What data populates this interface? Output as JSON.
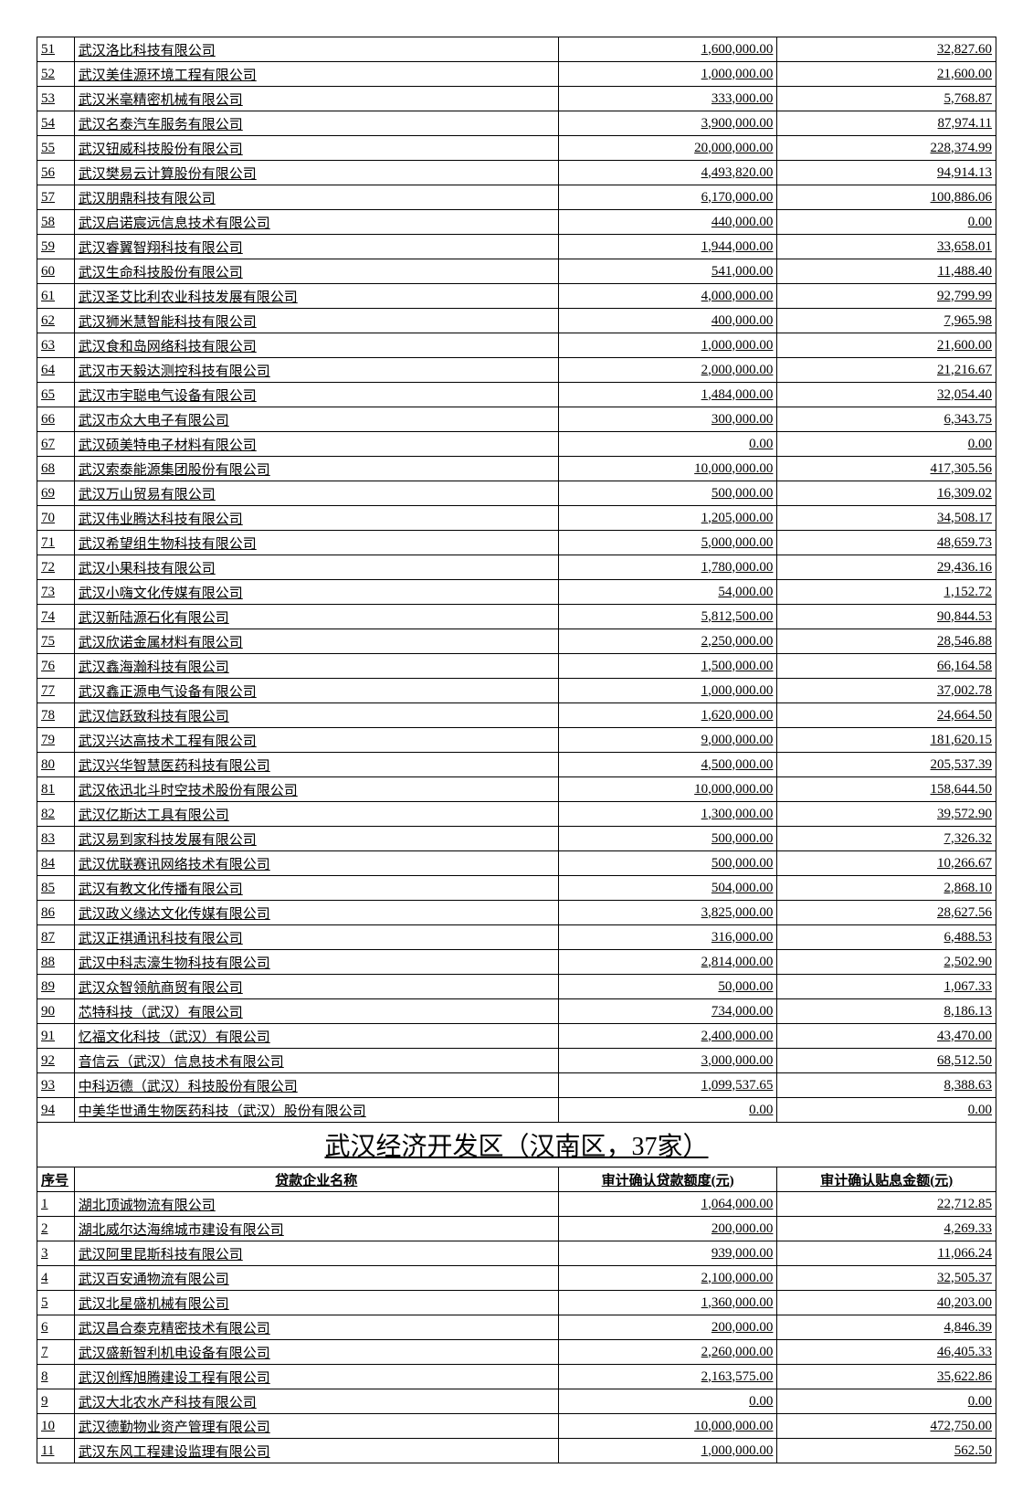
{
  "section1": {
    "rows": [
      {
        "idx": "51",
        "name": "武汉洛比科技有限公司",
        "a": "1,600,000.00",
        "b": "32,827.60"
      },
      {
        "idx": "52",
        "name": "武汉美佳源环境工程有限公司",
        "a": "1,000,000.00",
        "b": "21,600.00"
      },
      {
        "idx": "53",
        "name": "武汉米毫精密机械有限公司",
        "a": "333,000.00",
        "b": "5,768.87"
      },
      {
        "idx": "54",
        "name": "武汉名泰汽车服务有限公司",
        "a": "3,900,000.00",
        "b": "87,974.11"
      },
      {
        "idx": "55",
        "name": "武汉钮威科技股份有限公司",
        "a": "20,000,000.00",
        "b": "228,374.99"
      },
      {
        "idx": "56",
        "name": "武汉樊易云计算股份有限公司",
        "a": "4,493,820.00",
        "b": "94,914.13"
      },
      {
        "idx": "57",
        "name": "武汉朋鼎科技有限公司",
        "a": "6,170,000.00",
        "b": "100,886.06"
      },
      {
        "idx": "58",
        "name": "武汉启诺宸远信息技术有限公司",
        "a": "440,000.00",
        "b": "0.00"
      },
      {
        "idx": "59",
        "name": "武汉睿翼智翔科技有限公司",
        "a": "1,944,000.00",
        "b": "33,658.01"
      },
      {
        "idx": "60",
        "name": "武汉生命科技股份有限公司",
        "a": "541,000.00",
        "b": "11,488.40"
      },
      {
        "idx": "61",
        "name": "武汉圣艾比利农业科技发展有限公司",
        "a": "4,000,000.00",
        "b": "92,799.99"
      },
      {
        "idx": "62",
        "name": "武汉狮米慧智能科技有限公司",
        "a": "400,000.00",
        "b": "7,965.98"
      },
      {
        "idx": "63",
        "name": "武汉食和岛网络科技有限公司",
        "a": "1,000,000.00",
        "b": "21,600.00"
      },
      {
        "idx": "64",
        "name": "武汉市天毅达测控科技有限公司",
        "a": "2,000,000.00",
        "b": "21,216.67"
      },
      {
        "idx": "65",
        "name": "武汉市宇聪电气设备有限公司",
        "a": "1,484,000.00",
        "b": "32,054.40"
      },
      {
        "idx": "66",
        "name": "武汉市众大电子有限公司",
        "a": "300,000.00",
        "b": "6,343.75"
      },
      {
        "idx": "67",
        "name": "武汉硕美特电子材料有限公司",
        "a": "0.00",
        "b": "0.00"
      },
      {
        "idx": "68",
        "name": "武汉索泰能源集团股份有限公司",
        "a": "10,000,000.00",
        "b": "417,305.56"
      },
      {
        "idx": "69",
        "name": "武汉万山贸易有限公司",
        "a": "500,000.00",
        "b": "16,309.02"
      },
      {
        "idx": "70",
        "name": "武汉伟业腾达科技有限公司",
        "a": "1,205,000.00",
        "b": "34,508.17"
      },
      {
        "idx": "71",
        "name": "武汉希望组生物科技有限公司",
        "a": "5,000,000.00",
        "b": "48,659.73"
      },
      {
        "idx": "72",
        "name": "武汉小果科技有限公司",
        "a": "1,780,000.00",
        "b": "29,436.16"
      },
      {
        "idx": "73",
        "name": "武汉小嗨文化传媒有限公司",
        "a": "54,000.00",
        "b": "1,152.72"
      },
      {
        "idx": "74",
        "name": "武汉新陆源石化有限公司",
        "a": "5,812,500.00",
        "b": "90,844.53"
      },
      {
        "idx": "75",
        "name": "武汉欣诺金属材料有限公司",
        "a": "2,250,000.00",
        "b": "28,546.88"
      },
      {
        "idx": "76",
        "name": "武汉鑫海瀚科技有限公司",
        "a": "1,500,000.00",
        "b": "66,164.58"
      },
      {
        "idx": "77",
        "name": "武汉鑫正源电气设备有限公司",
        "a": "1,000,000.00",
        "b": "37,002.78"
      },
      {
        "idx": "78",
        "name": "武汉信跃致科技有限公司",
        "a": "1,620,000.00",
        "b": "24,664.50"
      },
      {
        "idx": "79",
        "name": "武汉兴达高技术工程有限公司",
        "a": "9,000,000.00",
        "b": "181,620.15"
      },
      {
        "idx": "80",
        "name": "武汉兴华智慧医药科技有限公司",
        "a": "4,500,000.00",
        "b": "205,537.39"
      },
      {
        "idx": "81",
        "name": "武汉依迅北斗时空技术股份有限公司",
        "a": "10,000,000.00",
        "b": "158,644.50"
      },
      {
        "idx": "82",
        "name": "武汉亿斯达工具有限公司",
        "a": "1,300,000.00",
        "b": "39,572.90"
      },
      {
        "idx": "83",
        "name": "武汉易到家科技发展有限公司",
        "a": "500,000.00",
        "b": "7,326.32"
      },
      {
        "idx": "84",
        "name": "武汉优联赛讯网络技术有限公司",
        "a": "500,000.00",
        "b": "10,266.67"
      },
      {
        "idx": "85",
        "name": "武汉有教文化传播有限公司",
        "a": "504,000.00",
        "b": "2,868.10"
      },
      {
        "idx": "86",
        "name": "武汉政义缘达文化传媒有限公司",
        "a": "3,825,000.00",
        "b": "28,627.56"
      },
      {
        "idx": "87",
        "name": "武汉正祺通讯科技有限公司",
        "a": "316,000.00",
        "b": "6,488.53"
      },
      {
        "idx": "88",
        "name": "武汉中科志濠生物科技有限公司",
        "a": "2,814,000.00",
        "b": "2,502.90"
      },
      {
        "idx": "89",
        "name": "武汉众智领航商贸有限公司",
        "a": "50,000.00",
        "b": "1,067.33"
      },
      {
        "idx": "90",
        "name": "芯特科技（武汉）有限公司",
        "a": "734,000.00",
        "b": "8,186.13"
      },
      {
        "idx": "91",
        "name": "忆福文化科技（武汉）有限公司",
        "a": "2,400,000.00",
        "b": "43,470.00"
      },
      {
        "idx": "92",
        "name": "音信云（武汉）信息技术有限公司",
        "a": "3,000,000.00",
        "b": "68,512.50"
      },
      {
        "idx": "93",
        "name": "中科迈德（武汉）科技股份有限公司",
        "a": "1,099,537.65",
        "b": "8,388.63"
      },
      {
        "idx": "94",
        "name": "中美华世通生物医药科技（武汉）股份有限公司",
        "a": "0.00",
        "b": "0.00"
      }
    ]
  },
  "section2": {
    "title": "武汉经济开发区（汉南区，37家）",
    "headers": {
      "idx": "序号",
      "name": "贷款企业名称",
      "a": "审计确认贷款额度(元)",
      "b": "审计确认贴息金额(元)"
    },
    "rows": [
      {
        "idx": "1",
        "name": "湖北顶诚物流有限公司",
        "a": "1,064,000.00",
        "b": "22,712.85"
      },
      {
        "idx": "2",
        "name": "湖北威尔达海绵城市建设有限公司",
        "a": "200,000.00",
        "b": "4,269.33"
      },
      {
        "idx": "3",
        "name": "武汉阿里昆斯科技有限公司",
        "a": "939,000.00",
        "b": "11,066.24"
      },
      {
        "idx": "4",
        "name": "武汉百安通物流有限公司",
        "a": "2,100,000.00",
        "b": "32,505.37"
      },
      {
        "idx": "5",
        "name": "武汉北星盛机械有限公司",
        "a": "1,360,000.00",
        "b": "40,203.00"
      },
      {
        "idx": "6",
        "name": "武汉昌合泰克精密技术有限公司",
        "a": "200,000.00",
        "b": "4,846.39"
      },
      {
        "idx": "7",
        "name": "武汉盛新智利机电设备有限公司",
        "a": "2,260,000.00",
        "b": "46,405.33"
      },
      {
        "idx": "8",
        "name": "武汉创辉旭腾建设工程有限公司",
        "a": "2,163,575.00",
        "b": "35,622.86"
      },
      {
        "idx": "9",
        "name": "武汉大北农水产科技有限公司",
        "a": "0.00",
        "b": "0.00"
      },
      {
        "idx": "10",
        "name": "武汉德勤物业资产管理有限公司",
        "a": "10,000,000.00",
        "b": "472,750.00"
      },
      {
        "idx": "11",
        "name": "武汉东风工程建设监理有限公司",
        "a": "1,000,000.00",
        "b": "562.50"
      }
    ]
  }
}
